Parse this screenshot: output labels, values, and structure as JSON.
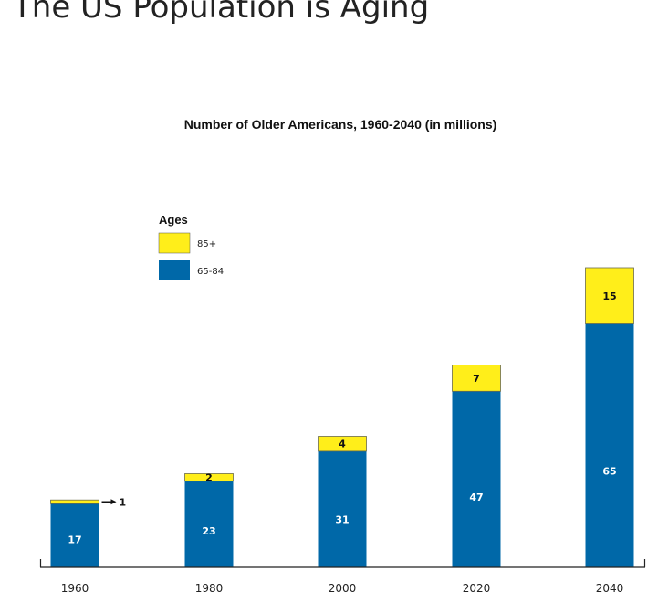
{
  "page": {
    "title": "The US Population is Aging"
  },
  "chart_data": {
    "type": "bar",
    "stacked": true,
    "title": "Number of Older Americans, 1960-2040 (in millions)",
    "xlabel": "",
    "ylabel": "",
    "categories": [
      "1960",
      "1980",
      "2000",
      "2020",
      "2040"
    ],
    "ylim": [
      0,
      80
    ],
    "grid": false,
    "legend": {
      "title": "Ages",
      "position": "top-left"
    },
    "series": [
      {
        "name": "65-84",
        "values": [
          17,
          23,
          31,
          47,
          65
        ],
        "color": "#0068a8",
        "label_color": "#ffffff"
      },
      {
        "name": "85+",
        "values": [
          1,
          2,
          4,
          7,
          15
        ],
        "color": "#ffee1a",
        "label_color": "#111111"
      }
    ]
  }
}
